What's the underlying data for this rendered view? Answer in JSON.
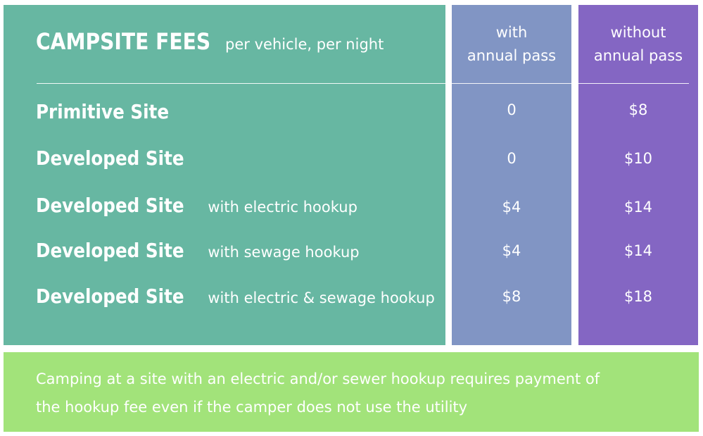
{
  "header": {
    "title": "CAMPSITE FEES",
    "subtitle": "per vehicle, per night",
    "col_with_line1": "with",
    "col_with_line2": "annual pass",
    "col_without_line1": "without",
    "col_without_line2": "annual pass"
  },
  "rows": [
    {
      "name": "Primitive Site",
      "detail": "",
      "with_pass": "0",
      "without_pass": "$8"
    },
    {
      "name": "Developed Site",
      "detail": "",
      "with_pass": "0",
      "without_pass": "$10"
    },
    {
      "name": "Developed Site",
      "detail": "with electric hookup",
      "with_pass": "$4",
      "without_pass": "$14"
    },
    {
      "name": "Developed Site",
      "detail": "with sewage hookup",
      "with_pass": "$4",
      "without_pass": "$14"
    },
    {
      "name": "Developed Site",
      "detail": "with electric & sewage hookup",
      "with_pass": "$8",
      "without_pass": "$18"
    }
  ],
  "note": {
    "line1": "Camping at a site with an electric and/or sewer hookup requires payment of",
    "line2": "the hookup fee even if the camper does not use the utility"
  },
  "colors": {
    "main_panel": "#67b7a2",
    "with_panel": "#8195c4",
    "without_panel": "#8466c3",
    "note_panel": "#a2e37a",
    "text": "#ffffff"
  }
}
